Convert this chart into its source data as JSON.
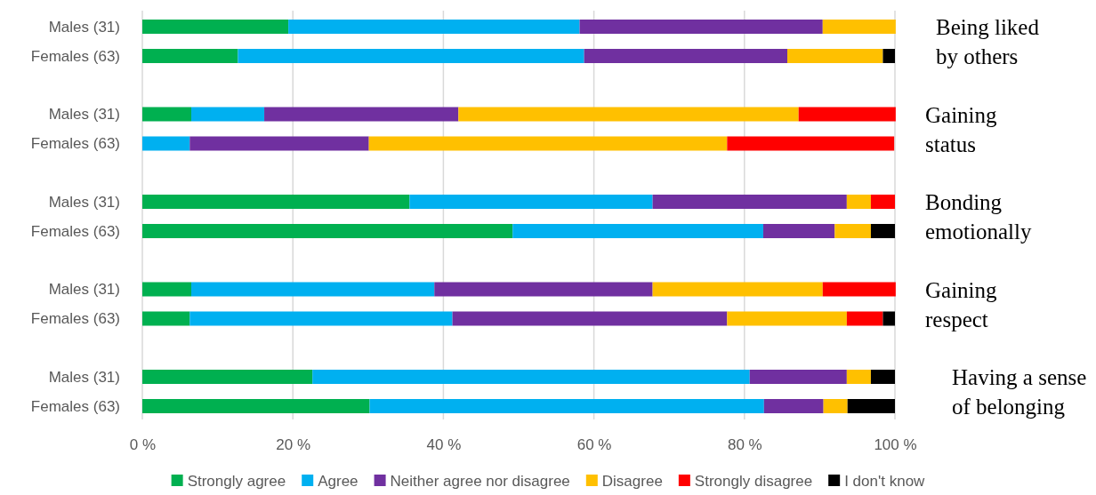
{
  "chart_data": {
    "type": "bar",
    "orientation": "horizontal",
    "stacked": true,
    "categories": [
      "Males (31)",
      "Females (63)",
      "Males (31)",
      "Females (63)",
      "Males (31)",
      "Females (63)",
      "Males (31)",
      "Females (63)",
      "Males (31)",
      "Females (63)"
    ],
    "series": [
      {
        "name": "Strongly agree",
        "color": "#00b050",
        "values": [
          19.4,
          12.7,
          6.5,
          0,
          35.5,
          49.2,
          6.5,
          6.3,
          22.6,
          30.2
        ]
      },
      {
        "name": "Agree",
        "color": "#00b0f0",
        "values": [
          38.7,
          46.0,
          9.7,
          6.3,
          32.3,
          33.3,
          32.3,
          34.9,
          58.1,
          52.4
        ]
      },
      {
        "name": "Neither agree nor disagree",
        "color": "#7030a0",
        "values": [
          32.3,
          27.0,
          25.8,
          23.8,
          25.8,
          9.5,
          29.0,
          36.5,
          12.9,
          7.9
        ]
      },
      {
        "name": "Disagree",
        "color": "#ffc000",
        "values": [
          9.7,
          12.7,
          45.2,
          47.6,
          3.2,
          4.8,
          22.6,
          15.9,
          3.2,
          3.2
        ]
      },
      {
        "name": "Strongly disagree",
        "color": "#ff0000",
        "values": [
          0,
          0,
          12.9,
          22.2,
          3.2,
          0,
          9.7,
          4.8,
          0,
          0
        ]
      },
      {
        "name": "I don't know",
        "color": "#000000",
        "values": [
          0,
          1.6,
          0,
          0,
          0,
          3.2,
          0,
          1.6,
          3.2,
          6.3
        ]
      }
    ],
    "xlim": [
      0,
      100
    ],
    "xticks": [
      {
        "value": 0,
        "label": "0 %"
      },
      {
        "value": 20,
        "label": "20 %"
      },
      {
        "value": 40,
        "label": "40 %"
      },
      {
        "value": 60,
        "label": "60 %"
      },
      {
        "value": 80,
        "label": "80 %"
      },
      {
        "value": 100,
        "label": "100 %"
      }
    ],
    "grid": "x",
    "legend": "bottom",
    "annotations": [
      "Being liked by others",
      "Gaining status",
      "Bonding emotionally",
      "Gaining respect",
      "Having a sense of belonging"
    ]
  }
}
